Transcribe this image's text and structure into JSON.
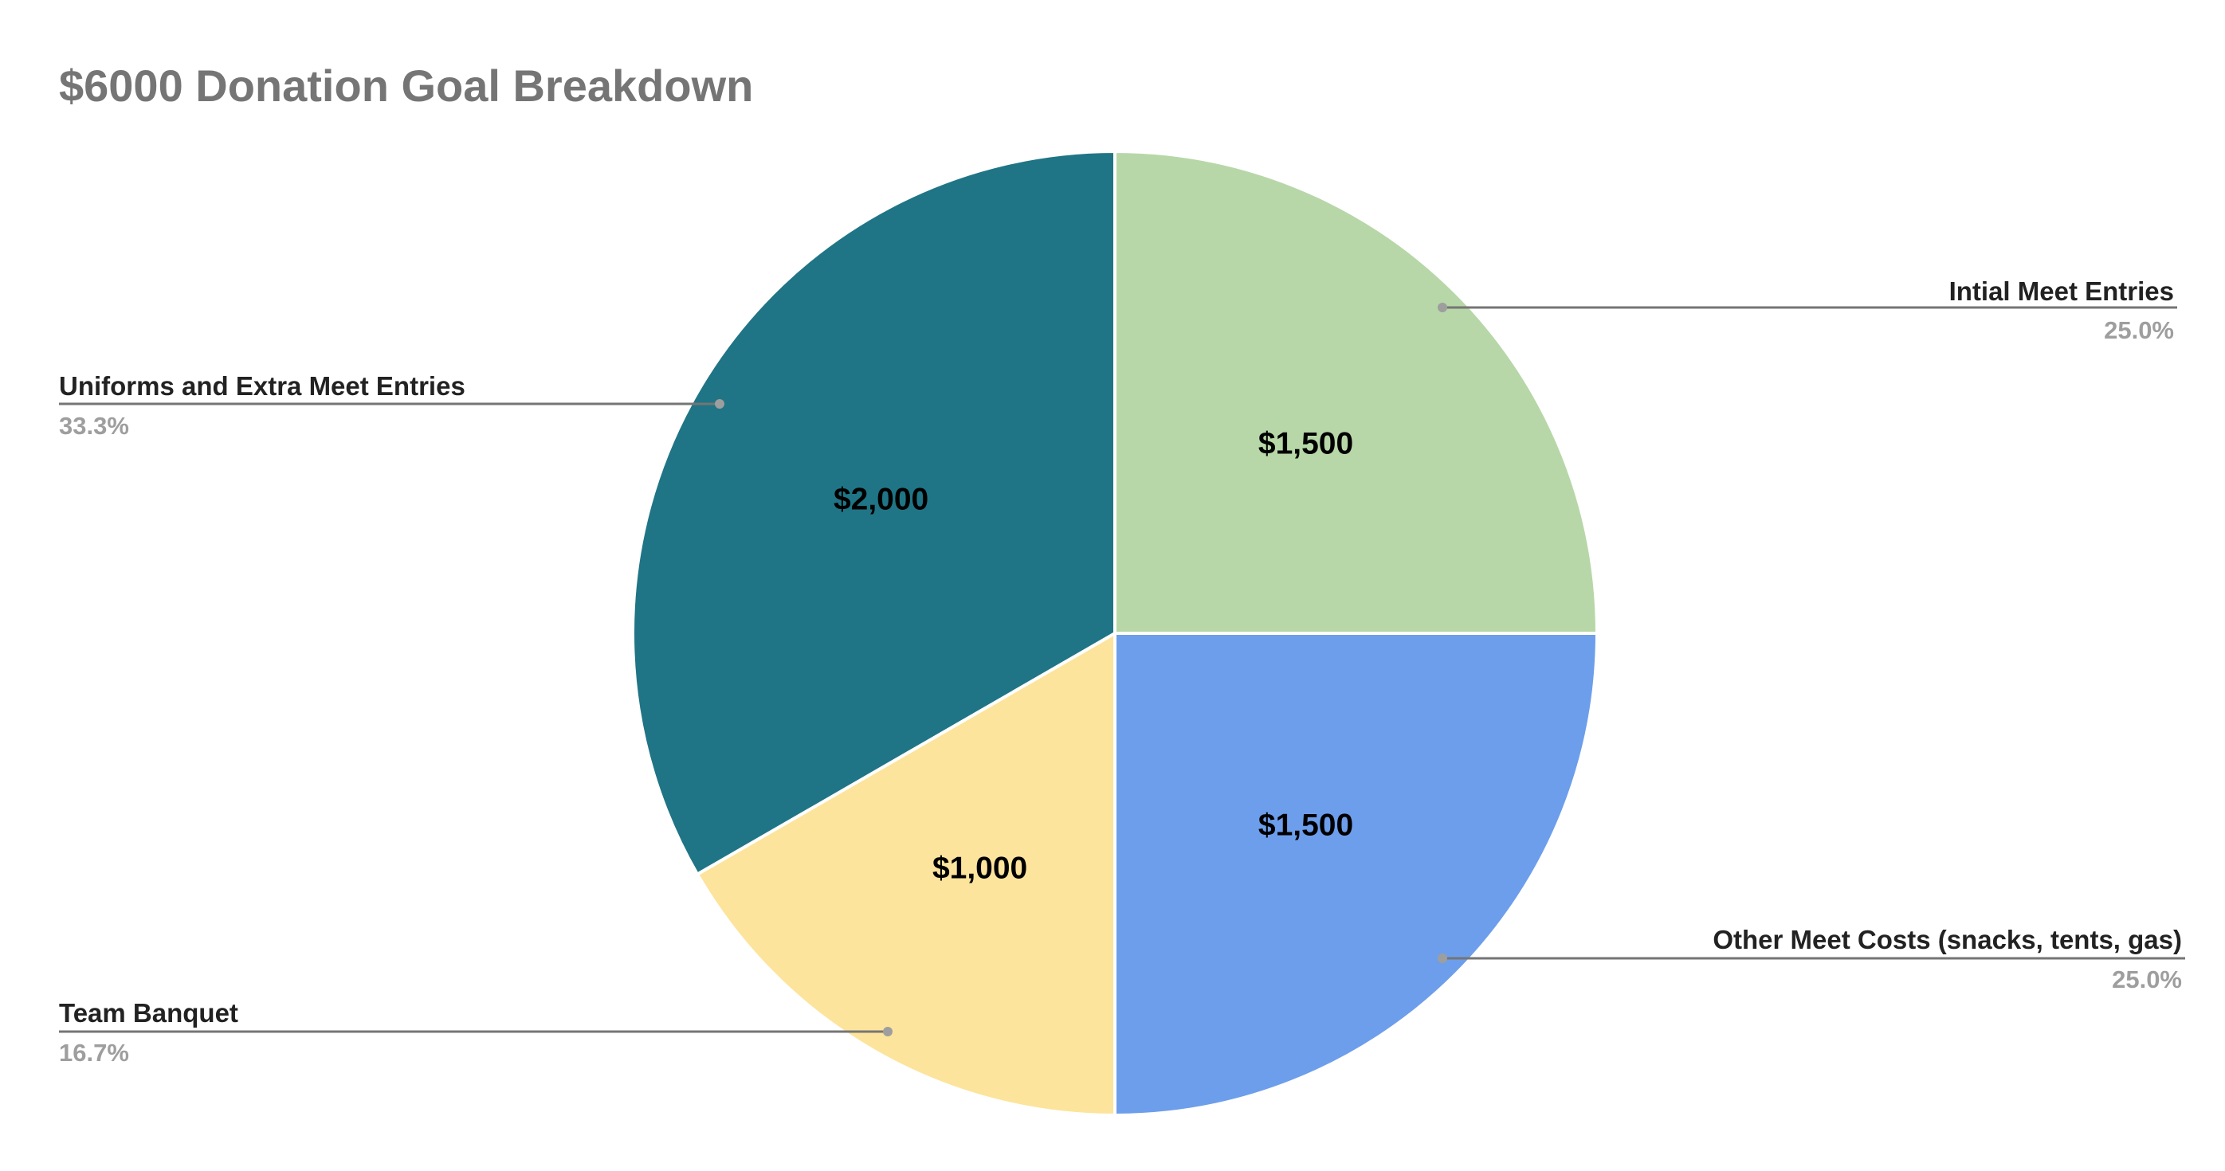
{
  "chart_data": {
    "type": "pie",
    "title": "$6000 Donation Goal Breakdown",
    "categories": [
      "Intial Meet Entries",
      "Other Meet Costs (snacks, tents, gas)",
      "Team Banquet",
      "Uniforms and Extra Meet Entries"
    ],
    "values": [
      1500,
      1500,
      1000,
      2000
    ],
    "value_labels": [
      "$1,500",
      "$1,500",
      "$1,000",
      "$2,000"
    ],
    "percent_labels": [
      "25.0%",
      "25.0%",
      "16.7%",
      "33.3%"
    ],
    "colors": [
      "#b7d7a8",
      "#6d9eeb",
      "#fde49c",
      "#1f7585"
    ],
    "legend": "callout-labels"
  }
}
